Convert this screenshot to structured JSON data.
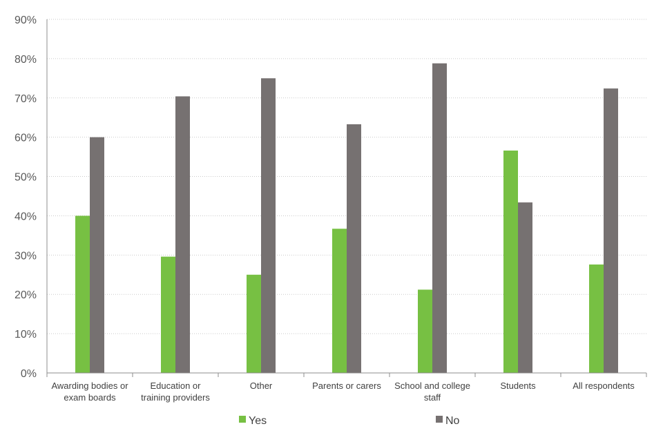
{
  "chart_data": {
    "type": "bar",
    "title": "",
    "xlabel": "",
    "ylabel": "",
    "ylim": [
      0,
      90
    ],
    "yticks": [
      0,
      10,
      20,
      30,
      40,
      50,
      60,
      70,
      80,
      90
    ],
    "ytick_labels": [
      "0%",
      "10%",
      "20%",
      "30%",
      "40%",
      "50%",
      "60%",
      "70%",
      "80%",
      "90%"
    ],
    "categories": [
      [
        "Awarding bodies or",
        "exam boards"
      ],
      [
        "Education or",
        "training providers"
      ],
      [
        "Other"
      ],
      [
        "Parents or carers"
      ],
      [
        "School and college",
        "staff"
      ],
      [
        "Students"
      ],
      [
        "All respondents"
      ]
    ],
    "series": [
      {
        "name": "Yes",
        "color": "#77c043",
        "values": [
          40,
          29.6,
          25,
          36.7,
          21.2,
          56.6,
          27.6
        ]
      },
      {
        "name": "No",
        "color": "#767171",
        "values": [
          60,
          70.4,
          75,
          63.3,
          78.8,
          43.4,
          72.4
        ]
      }
    ],
    "grid": true,
    "legend_position": "bottom"
  }
}
